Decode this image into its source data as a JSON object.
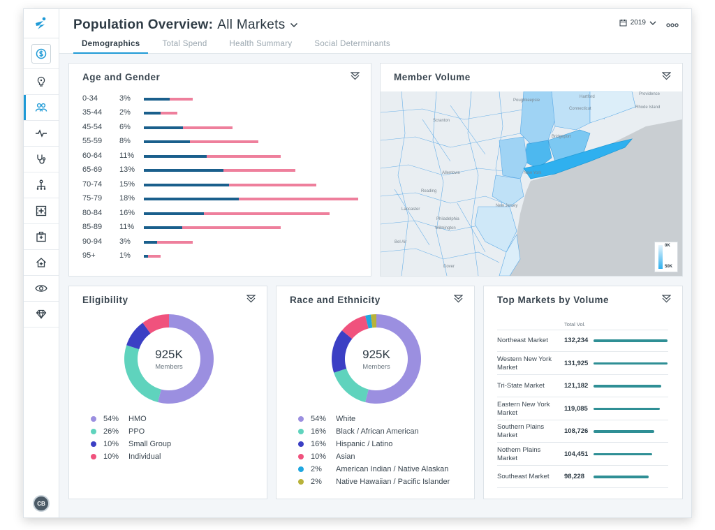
{
  "header": {
    "title_strong": "Population Overview:",
    "title_market": "All Markets",
    "year": "2019",
    "tabs": [
      {
        "label": "Demographics",
        "active": true
      },
      {
        "label": "Total Spend",
        "active": false
      },
      {
        "label": "Health Summary",
        "active": false
      },
      {
        "label": "Social Determinants",
        "active": false
      }
    ]
  },
  "sidebar": {
    "icons": [
      "logo-icon",
      "dollar-icon",
      "lightbulb-icon",
      "people-icon",
      "pulse-icon",
      "stethoscope-icon",
      "hierarchy-icon",
      "medical-grid-icon",
      "hospital-icon",
      "home-health-icon",
      "eye-icon",
      "diamond-icon"
    ],
    "active_item": "people-icon",
    "avatar_initials": "CB"
  },
  "age_gender": {
    "title": "Age and Gender",
    "rows": [
      {
        "label": "0-34",
        "pct": "3%",
        "male": 37,
        "female": 33
      },
      {
        "label": "35-44",
        "pct": "2%",
        "male": 24,
        "female": 24
      },
      {
        "label": "45-54",
        "pct": "6%",
        "male": 56,
        "female": 71
      },
      {
        "label": "55-59",
        "pct": "8%",
        "male": 66,
        "female": 98
      },
      {
        "label": "60-64",
        "pct": "11%",
        "male": 90,
        "female": 106
      },
      {
        "label": "65-69",
        "pct": "13%",
        "male": 114,
        "female": 103
      },
      {
        "label": "70-74",
        "pct": "15%",
        "male": 122,
        "female": 125
      },
      {
        "label": "75-79",
        "pct": "18%",
        "male": 136,
        "female": 171
      },
      {
        "label": "80-84",
        "pct": "16%",
        "male": 86,
        "female": 180
      },
      {
        "label": "85-89",
        "pct": "11%",
        "male": 55,
        "female": 141
      },
      {
        "label": "90-94",
        "pct": "3%",
        "male": 19,
        "female": 51
      },
      {
        "label": "95+",
        "pct": "1%",
        "male": 6,
        "female": 18
      }
    ]
  },
  "member_volume": {
    "title": "Member Volume",
    "legend_min": "0K",
    "legend_max": "50K",
    "places": [
      "Hartford",
      "Providence",
      "Poughkeepsie",
      "Bridgeport",
      "Scranton",
      "New York",
      "Allentown",
      "Reading",
      "Lancaster",
      "Philadelphia",
      "Wilmington",
      "Dover",
      "Bel Air",
      "New Jersey",
      "Rhode Island",
      "Connecticut"
    ]
  },
  "eligibility": {
    "title": "Eligibility",
    "center_value": "925K",
    "center_label": "Members",
    "segments": [
      {
        "label": "HMO",
        "pct": "54%",
        "value": 54,
        "color": "#9b8fe0"
      },
      {
        "label": "PPO",
        "pct": "26%",
        "value": 26,
        "color": "#5fd3bd"
      },
      {
        "label": "Small Group",
        "pct": "10%",
        "value": 10,
        "color": "#3b3fc4"
      },
      {
        "label": "Individual",
        "pct": "10%",
        "value": 10,
        "color": "#f0527d"
      }
    ]
  },
  "race": {
    "title": "Race and Ethnicity",
    "center_value": "925K",
    "center_label": "Members",
    "segments": [
      {
        "label": "White",
        "pct": "54%",
        "value": 54,
        "color": "#9b8fe0"
      },
      {
        "label": "Black / African American",
        "pct": "16%",
        "value": 16,
        "color": "#5fd3bd"
      },
      {
        "label": "Hispanic / Latino",
        "pct": "16%",
        "value": 16,
        "color": "#3b3fc4"
      },
      {
        "label": "Asian",
        "pct": "10%",
        "value": 10,
        "color": "#f0527d"
      },
      {
        "label": "American Indian / Native Alaskan",
        "pct": "2%",
        "value": 2,
        "color": "#1fa7e0"
      },
      {
        "label": "Native Hawaiian / Pacific Islander",
        "pct": "2%",
        "value": 2,
        "color": "#b8b23a"
      }
    ]
  },
  "top_markets": {
    "title": "Top Markets by Volume",
    "col_header": "Total Vol.",
    "rows": [
      {
        "name": "Northeast Market",
        "value": "132,234",
        "num": 132234
      },
      {
        "name": "Western New York Market",
        "value": "131,925",
        "num": 131925
      },
      {
        "name": "Tri-State Market",
        "value": "121,182",
        "num": 121182
      },
      {
        "name": "Eastern New York Market",
        "value": "119,085",
        "num": 119085
      },
      {
        "name": "Southern Plains Market",
        "value": "108,726",
        "num": 108726
      },
      {
        "name": "Nothern Plains Market",
        "value": "104,451",
        "num": 104451
      },
      {
        "name": "Southeast Market",
        "value": "98,228",
        "num": 98228
      }
    ]
  }
}
